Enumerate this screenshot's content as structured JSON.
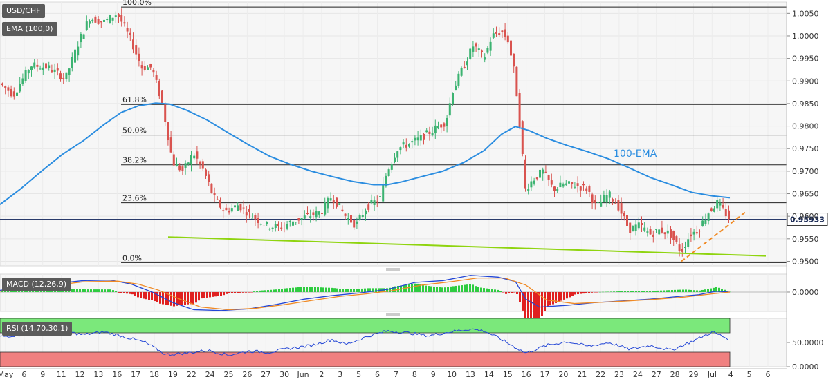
{
  "price_panel": {
    "symbol": "USD/CHF",
    "indicator": "EMA (100,0)",
    "ema_label": "100-EMA",
    "last_price": "0.95933"
  },
  "macd_panel": {
    "label": "MACD (12,26,9)"
  },
  "rsi_panel": {
    "label": "RSI (14,70,30,1)"
  },
  "colors": {
    "bull": "#3cb371",
    "bear": "#d9534f",
    "ema": "#2b8de0",
    "support": "#8fd40f",
    "trend": "#f08a24",
    "macd": "#2346d6",
    "signal": "#f08a24",
    "hist_pos": "#2ecc40",
    "hist_neg": "#e02020",
    "rsi_line": "#2346d6",
    "ob_zone": "#7be87b",
    "os_zone": "#f08080"
  },
  "chart_data": [
    {
      "type": "candlestick",
      "title": "USD/CHF",
      "y_ticks": [
        "1.0050",
        "1.0000",
        "0.9950",
        "0.9900",
        "0.9850",
        "0.9800",
        "0.9750",
        "0.9700",
        "0.9650",
        "0.9600",
        "0.9550",
        "0.9500"
      ],
      "ylim": [
        0.949,
        1.0075
      ],
      "x_labels": [
        "May",
        "6",
        "9",
        "11",
        "12",
        "13",
        "16",
        "17",
        "18",
        "19",
        "22",
        "24",
        "25",
        "26",
        "27",
        "30",
        "Jun",
        "2",
        "3",
        "5",
        "6",
        "7",
        "8",
        "9",
        "10",
        "13",
        "14",
        "15",
        "16",
        "17",
        "20",
        "21",
        "22",
        "23",
        "24",
        "27",
        "28",
        "29",
        "Jul",
        "4",
        "5",
        "6"
      ],
      "fibonacci": [
        {
          "label": "100.0%",
          "value": 1.0064
        },
        {
          "label": "61.8%",
          "value": 0.9848
        },
        {
          "label": "50.0%",
          "value": 0.978
        },
        {
          "label": "38.2%",
          "value": 0.9714
        },
        {
          "label": "23.6%",
          "value": 0.963
        },
        {
          "label": "0.0%",
          "value": 0.9497
        }
      ],
      "last_price": 0.95933,
      "series": [
        {
          "name": "100-EMA",
          "values": [
            [
              0,
              0.9626
            ],
            [
              30,
              0.9661
            ],
            [
              60,
              0.97
            ],
            [
              90,
              0.9737
            ],
            [
              120,
              0.9767
            ],
            [
              150,
              0.9803
            ],
            [
              175,
              0.983
            ],
            [
              200,
              0.9845
            ],
            [
              225,
              0.9851
            ],
            [
              245,
              0.9849
            ],
            [
              270,
              0.9835
            ],
            [
              300,
              0.9813
            ],
            [
              330,
              0.9785
            ],
            [
              360,
              0.9758
            ],
            [
              390,
              0.9733
            ],
            [
              420,
              0.9715
            ],
            [
              450,
              0.97
            ],
            [
              480,
              0.9688
            ],
            [
              510,
              0.9677
            ],
            [
              540,
              0.967
            ],
            [
              560,
              0.967
            ],
            [
              580,
              0.9676
            ],
            [
              610,
              0.9688
            ],
            [
              640,
              0.97
            ],
            [
              670,
              0.9719
            ],
            [
              700,
              0.9746
            ],
            [
              725,
              0.9782
            ],
            [
              745,
              0.9799
            ],
            [
              765,
              0.979
            ],
            [
              790,
              0.9773
            ],
            [
              820,
              0.9757
            ],
            [
              850,
              0.9743
            ],
            [
              880,
              0.9727
            ],
            [
              910,
              0.9707
            ],
            [
              940,
              0.9686
            ],
            [
              970,
              0.967
            ],
            [
              1000,
              0.9653
            ],
            [
              1030,
              0.9645
            ],
            [
              1055,
              0.9641
            ]
          ]
        },
        {
          "name": "",
          "values": [
            [
              243,
              0.9554
            ],
            [
              1107,
              0.9512
            ]
          ]
        },
        {
          "name": "",
          "values": [
            [
              985,
              0.95
            ],
            [
              1080,
              0.9612
            ]
          ]
        }
      ]
    },
    {
      "type": "line",
      "title": "MACD (12,26,9)",
      "y_ticks": [
        "0.0000"
      ],
      "ylim": [
        -0.011,
        0.0102
      ],
      "series": [
        {
          "name": "",
          "values": [
            [
              0,
              0.001
            ],
            [
              60,
              0.004
            ],
            [
              120,
              0.0065
            ],
            [
              160,
              0.0068
            ],
            [
              190,
              0.0045
            ],
            [
              220,
              0.0
            ],
            [
              250,
              -0.006
            ],
            [
              280,
              -0.01
            ],
            [
              320,
              -0.0105
            ],
            [
              360,
              -0.0095
            ],
            [
              400,
              -0.007
            ],
            [
              440,
              -0.004
            ],
            [
              480,
              -0.002
            ],
            [
              520,
              -0.0005
            ],
            [
              560,
              0.0015
            ],
            [
              600,
              0.0055
            ],
            [
              640,
              0.0065
            ],
            [
              680,
              0.0095
            ],
            [
              720,
              0.0085
            ],
            [
              745,
              0.006
            ],
            [
              760,
              -0.004
            ],
            [
              780,
              -0.0085
            ],
            [
              820,
              -0.0075
            ],
            [
              860,
              -0.006
            ],
            [
              900,
              -0.005
            ],
            [
              940,
              -0.004
            ],
            [
              980,
              -0.0025
            ],
            [
              1010,
              -0.0015
            ],
            [
              1035,
              0.0005
            ],
            [
              1055,
              0.0
            ]
          ]
        },
        {
          "name": "",
          "values": [
            [
              0,
              0.0005
            ],
            [
              60,
              0.003
            ],
            [
              120,
              0.0058
            ],
            [
              170,
              0.0062
            ],
            [
              200,
              0.0045
            ],
            [
              230,
              0.001
            ],
            [
              260,
              -0.004
            ],
            [
              290,
              -0.0085
            ],
            [
              330,
              -0.01
            ],
            [
              370,
              -0.0092
            ],
            [
              410,
              -0.0072
            ],
            [
              450,
              -0.0048
            ],
            [
              490,
              -0.0025
            ],
            [
              530,
              -0.001
            ],
            [
              570,
              0.001
            ],
            [
              610,
              0.004
            ],
            [
              650,
              0.0058
            ],
            [
              690,
              0.008
            ],
            [
              730,
              0.008
            ],
            [
              760,
              0.004
            ],
            [
              790,
              -0.0045
            ],
            [
              830,
              -0.0065
            ],
            [
              870,
              -0.0058
            ],
            [
              910,
              -0.005
            ],
            [
              950,
              -0.004
            ],
            [
              990,
              -0.0028
            ],
            [
              1030,
              -0.001
            ],
            [
              1055,
              0.0
            ]
          ]
        }
      ]
    },
    {
      "type": "line",
      "title": "RSI (14,70,30,1)",
      "y_ticks": [
        "50.0000",
        "0.0000"
      ],
      "ylim": [
        0,
        100
      ],
      "zones": [
        {
          "from": 70,
          "to": 100,
          "label": "overbought"
        },
        {
          "from": 0,
          "to": 30,
          "label": "oversold"
        }
      ],
      "series": [
        {
          "name": "",
          "values": [
            [
              0,
              62
            ],
            [
              30,
              66
            ],
            [
              60,
              68
            ],
            [
              90,
              74
            ],
            [
              120,
              66
            ],
            [
              150,
              72
            ],
            [
              180,
              62
            ],
            [
              210,
              50
            ],
            [
              240,
              25
            ],
            [
              270,
              28
            ],
            [
              300,
              34
            ],
            [
              330,
              24
            ],
            [
              360,
              32
            ],
            [
              390,
              30
            ],
            [
              420,
              38
            ],
            [
              450,
              44
            ],
            [
              480,
              56
            ],
            [
              500,
              46
            ],
            [
              530,
              62
            ],
            [
              560,
              74
            ],
            [
              590,
              70
            ],
            [
              620,
              64
            ],
            [
              650,
              72
            ],
            [
              680,
              78
            ],
            [
              700,
              74
            ],
            [
              720,
              60
            ],
            [
              745,
              40
            ],
            [
              760,
              28
            ],
            [
              790,
              44
            ],
            [
              820,
              52
            ],
            [
              850,
              42
            ],
            [
              880,
              50
            ],
            [
              910,
              36
            ],
            [
              940,
              44
            ],
            [
              970,
              34
            ],
            [
              1000,
              52
            ],
            [
              1030,
              72
            ],
            [
              1055,
              56
            ]
          ]
        }
      ]
    }
  ]
}
